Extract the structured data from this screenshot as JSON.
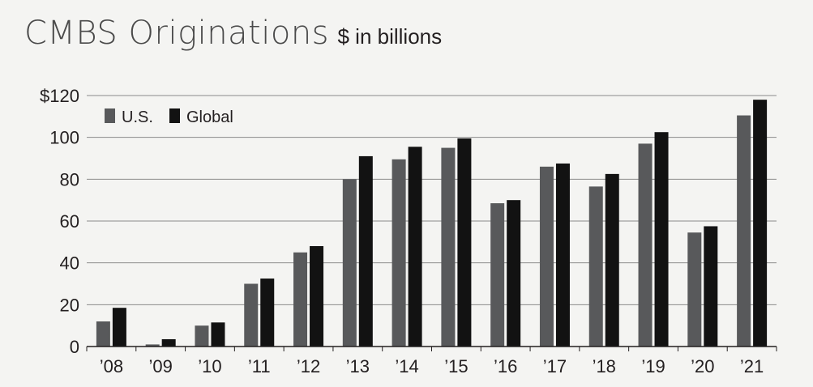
{
  "chart_data": {
    "type": "bar",
    "title": "CMBS Originations",
    "subtitle": "$ in billions",
    "categories": [
      "’08",
      "’09",
      "’10",
      "’11",
      "’12",
      "’13",
      "’14",
      "’15",
      "’16",
      "’17",
      "’18",
      "’19",
      "’20",
      "’21"
    ],
    "series": [
      {
        "name": "U.S.",
        "color": "#58595b",
        "values": [
          12,
          1,
          10,
          30,
          45,
          80,
          89.5,
          95,
          68.5,
          86,
          76.5,
          97,
          54.5,
          110.5
        ]
      },
      {
        "name": "Global",
        "color": "#121212",
        "values": [
          18.5,
          3.5,
          11.5,
          32.5,
          48,
          91,
          95.5,
          99.5,
          70,
          87.5,
          82.5,
          102.5,
          57.5,
          118
        ]
      }
    ],
    "ylim": [
      0,
      120
    ],
    "yticks": [
      "0",
      "20",
      "40",
      "60",
      "80",
      "100",
      "$120"
    ],
    "ytick_values": [
      0,
      20,
      40,
      60,
      80,
      100,
      120
    ],
    "grid": true,
    "legend_position": "top-left"
  }
}
